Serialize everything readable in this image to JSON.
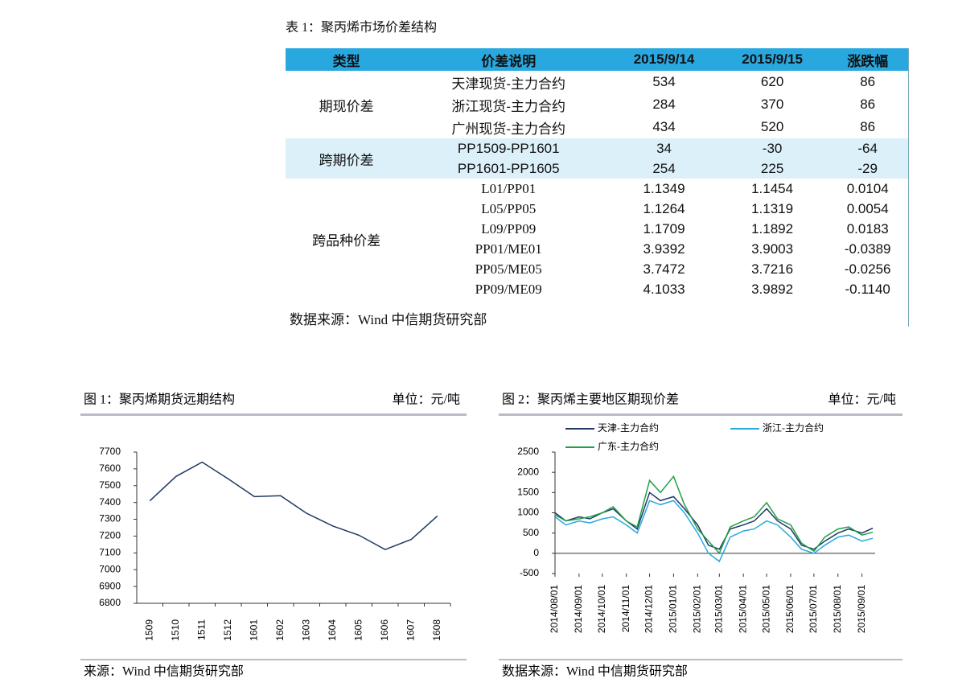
{
  "table": {
    "caption": "表 1：聚丙烯市场价差结构",
    "headers": [
      "类型",
      "价差说明",
      "2015/9/14",
      "2015/9/15",
      "涨跌幅"
    ],
    "groups": [
      {
        "type": "期现价差",
        "rows": [
          [
            "天津现货-主力合约",
            "534",
            "620",
            "86"
          ],
          [
            "浙江现货-主力合约",
            "284",
            "370",
            "86"
          ],
          [
            "广州现货-主力合约",
            "434",
            "520",
            "86"
          ]
        ]
      },
      {
        "type": "跨期价差",
        "rows": [
          [
            "PP1509-PP1601",
            "34",
            "-30",
            "-64"
          ],
          [
            "PP1601-PP1605",
            "254",
            "225",
            "-29"
          ]
        ]
      },
      {
        "type": "跨品种价差",
        "rows": [
          [
            "L01/PP01",
            "1.1349",
            "1.1454",
            "0.0104"
          ],
          [
            "L05/PP05",
            "1.1264",
            "1.1319",
            "0.0054"
          ],
          [
            "L09/PP09",
            "1.1709",
            "1.1892",
            "0.0183"
          ],
          [
            "PP01/ME01",
            "3.9392",
            "3.9003",
            "-0.0389"
          ],
          [
            "PP05/ME05",
            "3.7472",
            "3.7216",
            "-0.0256"
          ],
          [
            "PP09/ME09",
            "4.1033",
            "3.9892",
            "-0.1140"
          ]
        ]
      }
    ],
    "source": "数据来源：Wind 中信期货研究部"
  },
  "chart_data": [
    {
      "type": "line",
      "title": "图 1：聚丙烯期货远期结构",
      "unit": "单位：元/吨",
      "source": "来源：Wind 中信期货研究部",
      "categories": [
        "1509",
        "1510",
        "1511",
        "1512",
        "1601",
        "1602",
        "1603",
        "1604",
        "1605",
        "1606",
        "1607",
        "1608"
      ],
      "series": [
        {
          "name": null,
          "color": "#1f3864",
          "values": [
            7410,
            7555,
            7640,
            7540,
            7435,
            7440,
            7335,
            7260,
            7205,
            7120,
            7180,
            7320
          ]
        }
      ],
      "ylim": [
        6800,
        7700
      ],
      "yticks": [
        6800,
        6900,
        7000,
        7100,
        7200,
        7300,
        7400,
        7500,
        7600,
        7700
      ]
    },
    {
      "type": "line",
      "title": "图 2：聚丙烯主要地区期现价差",
      "unit": "单位：元/吨",
      "source": "数据来源：Wind 中信期货研究部",
      "x": [
        "2014/08/01",
        "2014/08/15",
        "2014/09/01",
        "2014/09/15",
        "2014/10/01",
        "2014/10/15",
        "2014/11/01",
        "2014/11/15",
        "2014/12/01",
        "2014/12/15",
        "2015/01/01",
        "2015/01/15",
        "2015/02/01",
        "2015/02/15",
        "2015/03/01",
        "2015/03/15",
        "2015/04/01",
        "2015/04/15",
        "2015/05/01",
        "2015/05/15",
        "2015/06/01",
        "2015/06/15",
        "2015/07/01",
        "2015/07/15",
        "2015/08/01",
        "2015/08/15",
        "2015/09/01",
        "2015/09/15"
      ],
      "series": [
        {
          "name": "天津-主力合约",
          "color": "#1f3864",
          "values": [
            1000,
            800,
            900,
            850,
            1000,
            1100,
            800,
            600,
            1500,
            1300,
            1400,
            1100,
            700,
            200,
            100,
            600,
            700,
            800,
            1100,
            800,
            600,
            200,
            100,
            300,
            500,
            600,
            500,
            620
          ]
        },
        {
          "name": "浙江-主力合约",
          "color": "#29a8e0",
          "values": [
            900,
            700,
            800,
            750,
            850,
            900,
            700,
            500,
            1300,
            1200,
            1300,
            1000,
            500,
            0,
            -200,
            400,
            550,
            600,
            800,
            700,
            400,
            100,
            0,
            200,
            400,
            450,
            300,
            370
          ]
        },
        {
          "name": "广东-主力合约",
          "color": "#21a04a",
          "values": [
            950,
            800,
            850,
            900,
            1000,
            1150,
            800,
            650,
            1800,
            1500,
            1900,
            1200,
            600,
            300,
            0,
            650,
            800,
            900,
            1250,
            850,
            700,
            250,
            50,
            400,
            600,
            650,
            450,
            520
          ]
        }
      ],
      "xlim": [
        "2014/08/01",
        "2015/09/18"
      ],
      "xticks": [
        "2014/08/01",
        "2014/09/01",
        "2014/10/01",
        "2014/11/01",
        "2014/12/01",
        "2015/01/01",
        "2015/02/01",
        "2015/03/01",
        "2015/04/01",
        "2015/05/01",
        "2015/06/01",
        "2015/07/01",
        "2015/08/01",
        "2015/09/01"
      ],
      "ylim": [
        -500,
        2500
      ],
      "yticks": [
        -500,
        0,
        500,
        1000,
        1500,
        2000,
        2500
      ]
    }
  ]
}
